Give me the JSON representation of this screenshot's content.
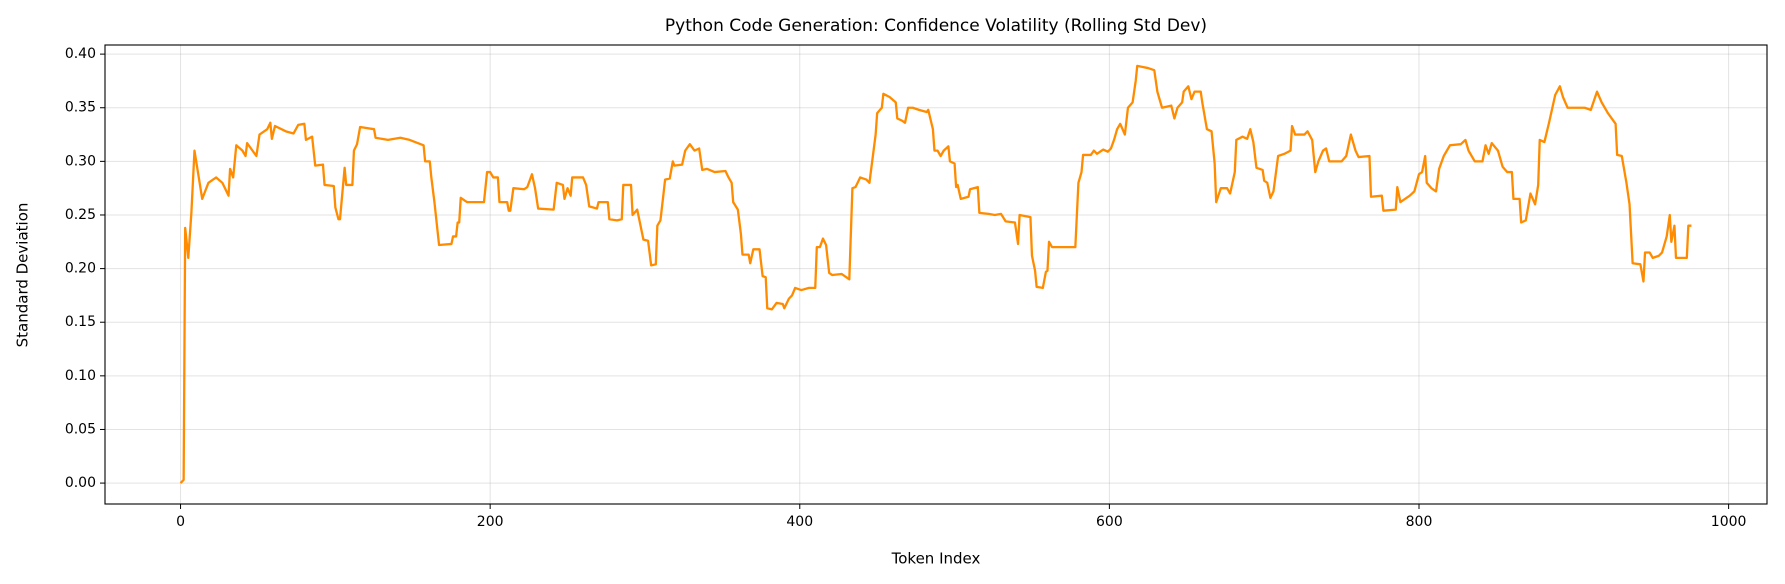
{
  "chart_data": {
    "type": "line",
    "title": "Python Code Generation: Confidence Volatility (Rolling Std Dev)",
    "x_label": "Token Index",
    "y_label": "Standard Deviation",
    "xlim": [
      -48.8,
      1024.8
    ],
    "ylim": [
      -0.0195,
      0.4085
    ],
    "xticks": [
      0,
      200,
      400,
      600,
      800,
      1000
    ],
    "yticks": [
      {
        "value": 0,
        "label": "0.00"
      },
      {
        "value": 0.05,
        "label": "0.05"
      },
      {
        "value": 0.1,
        "label": "0.10"
      },
      {
        "value": 0.15,
        "label": "0.15"
      },
      {
        "value": 0.2,
        "label": "0.20"
      },
      {
        "value": 0.25,
        "label": "0.25"
      },
      {
        "value": 0.3,
        "label": "0.30"
      },
      {
        "value": 0.35,
        "label": "0.35"
      },
      {
        "value": 0.4,
        "label": "0.40"
      }
    ],
    "grid": true,
    "x": [
      0,
      2,
      3,
      5,
      7,
      9,
      14,
      18,
      23,
      27,
      31,
      32,
      34,
      36,
      40,
      42,
      43,
      49,
      51,
      56,
      58,
      59,
      61,
      68,
      73,
      76,
      80,
      81,
      85,
      87,
      92,
      93,
      99,
      100,
      102,
      103,
      106,
      107,
      111,
      112,
      114,
      116,
      125,
      126,
      134,
      142,
      148,
      157,
      158,
      161,
      162,
      164,
      167,
      175,
      176,
      178,
      179,
      180,
      181,
      185,
      196,
      198,
      200,
      202,
      205,
      206,
      211,
      212,
      213,
      215,
      222,
      224,
      227,
      229,
      231,
      241,
      243,
      247,
      248,
      250,
      252,
      253,
      260,
      262,
      264,
      269,
      270,
      276,
      277,
      282,
      285,
      286,
      291,
      292,
      295,
      299,
      302,
      304,
      307,
      308,
      310,
      312,
      313,
      316,
      318,
      319,
      324,
      326,
      329,
      332,
      335,
      337,
      340,
      345,
      352,
      354,
      356,
      357,
      360,
      362,
      363,
      367,
      368,
      370,
      374,
      376,
      378,
      379,
      382,
      385,
      389,
      390,
      393,
      395,
      397,
      401,
      406,
      410,
      411,
      413,
      415,
      417,
      419,
      421,
      427,
      429,
      432,
      434,
      436,
      439,
      443,
      445,
      449,
      450,
      453,
      454,
      458,
      462,
      463,
      466,
      468,
      470,
      473,
      477,
      482,
      483,
      486,
      487,
      489,
      491,
      493,
      496,
      497,
      500,
      501,
      502,
      504,
      509,
      510,
      515,
      516,
      522,
      526,
      530,
      533,
      539,
      541,
      542,
      549,
      550,
      552,
      553,
      557,
      559,
      560,
      561,
      563,
      578,
      580,
      582,
      583,
      588,
      590,
      592,
      596,
      599,
      601,
      603,
      605,
      607,
      610,
      612,
      615,
      617,
      618,
      625,
      629,
      631,
      633,
      634,
      640,
      642,
      644,
      647,
      648,
      651,
      653,
      655,
      659,
      660,
      663,
      666,
      668,
      669,
      672,
      676,
      678,
      681,
      682,
      686,
      689,
      691,
      693,
      695,
      699,
      700,
      702,
      704,
      706,
      709,
      713,
      717,
      718,
      720,
      726,
      728,
      731,
      733,
      735,
      738,
      740,
      742,
      750,
      753,
      756,
      759,
      761,
      768,
      769,
      776,
      777,
      785,
      786,
      788,
      794,
      797,
      800,
      802,
      804,
      805,
      808,
      811,
      813,
      816,
      820,
      827,
      830,
      832,
      836,
      841,
      843,
      845,
      847,
      851,
      854,
      857,
      860,
      861,
      865,
      866,
      869,
      872,
      875,
      877,
      878,
      881,
      884,
      888,
      891,
      893,
      896,
      907,
      911,
      915,
      918,
      922,
      927,
      928,
      931,
      934,
      936,
      938,
      943,
      945,
      946,
      949,
      951,
      955,
      957,
      960,
      962,
      963,
      965,
      966,
      973,
      974,
      976
    ],
    "series": [
      {
        "name": "Rolling Std Dev",
        "color": "#ff8c00",
        "values": [
          0,
          0.003,
          0.238,
          0.21,
          0.252,
          0.31,
          0.265,
          0.28,
          0.285,
          0.28,
          0.268,
          0.293,
          0.285,
          0.315,
          0.31,
          0.305,
          0.317,
          0.305,
          0.325,
          0.33,
          0.336,
          0.321,
          0.333,
          0.328,
          0.326,
          0.334,
          0.335,
          0.32,
          0.323,
          0.296,
          0.297,
          0.278,
          0.277,
          0.257,
          0.246,
          0.246,
          0.294,
          0.278,
          0.278,
          0.31,
          0.316,
          0.332,
          0.33,
          0.322,
          0.32,
          0.322,
          0.32,
          0.315,
          0.3,
          0.3,
          0.285,
          0.262,
          0.222,
          0.223,
          0.23,
          0.23,
          0.243,
          0.243,
          0.266,
          0.262,
          0.262,
          0.29,
          0.29,
          0.285,
          0.285,
          0.262,
          0.262,
          0.254,
          0.254,
          0.275,
          0.274,
          0.276,
          0.288,
          0.275,
          0.256,
          0.255,
          0.28,
          0.278,
          0.265,
          0.275,
          0.268,
          0.285,
          0.285,
          0.278,
          0.258,
          0.256,
          0.262,
          0.262,
          0.246,
          0.245,
          0.246,
          0.278,
          0.278,
          0.25,
          0.255,
          0.227,
          0.226,
          0.203,
          0.204,
          0.24,
          0.245,
          0.27,
          0.283,
          0.284,
          0.3,
          0.296,
          0.297,
          0.31,
          0.316,
          0.31,
          0.312,
          0.292,
          0.293,
          0.29,
          0.291,
          0.285,
          0.28,
          0.262,
          0.255,
          0.232,
          0.213,
          0.213,
          0.205,
          0.218,
          0.218,
          0.193,
          0.192,
          0.163,
          0.162,
          0.168,
          0.167,
          0.163,
          0.172,
          0.175,
          0.182,
          0.18,
          0.182,
          0.182,
          0.22,
          0.22,
          0.228,
          0.222,
          0.196,
          0.194,
          0.195,
          0.193,
          0.19,
          0.275,
          0.276,
          0.285,
          0.283,
          0.28,
          0.325,
          0.345,
          0.35,
          0.363,
          0.36,
          0.355,
          0.34,
          0.338,
          0.336,
          0.35,
          0.35,
          0.348,
          0.346,
          0.348,
          0.33,
          0.31,
          0.31,
          0.305,
          0.31,
          0.314,
          0.3,
          0.298,
          0.276,
          0.278,
          0.265,
          0.267,
          0.274,
          0.276,
          0.252,
          0.251,
          0.25,
          0.251,
          0.244,
          0.243,
          0.223,
          0.25,
          0.248,
          0.212,
          0.198,
          0.183,
          0.182,
          0.197,
          0.198,
          0.225,
          0.22,
          0.22,
          0.28,
          0.29,
          0.306,
          0.306,
          0.31,
          0.307,
          0.311,
          0.309,
          0.312,
          0.32,
          0.33,
          0.335,
          0.325,
          0.35,
          0.355,
          0.375,
          0.389,
          0.387,
          0.385,
          0.365,
          0.355,
          0.35,
          0.352,
          0.34,
          0.35,
          0.355,
          0.365,
          0.37,
          0.358,
          0.365,
          0.365,
          0.355,
          0.33,
          0.328,
          0.298,
          0.262,
          0.275,
          0.275,
          0.27,
          0.29,
          0.32,
          0.323,
          0.321,
          0.33,
          0.318,
          0.294,
          0.292,
          0.282,
          0.28,
          0.266,
          0.272,
          0.305,
          0.307,
          0.31,
          0.333,
          0.325,
          0.325,
          0.328,
          0.32,
          0.29,
          0.3,
          0.31,
          0.312,
          0.3,
          0.3,
          0.305,
          0.325,
          0.31,
          0.304,
          0.305,
          0.267,
          0.268,
          0.254,
          0.255,
          0.276,
          0.262,
          0.268,
          0.272,
          0.288,
          0.29,
          0.305,
          0.28,
          0.275,
          0.272,
          0.293,
          0.305,
          0.315,
          0.316,
          0.32,
          0.31,
          0.3,
          0.3,
          0.315,
          0.307,
          0.317,
          0.31,
          0.295,
          0.29,
          0.29,
          0.265,
          0.265,
          0.243,
          0.245,
          0.27,
          0.26,
          0.278,
          0.32,
          0.318,
          0.336,
          0.362,
          0.37,
          0.36,
          0.35,
          0.35,
          0.348,
          0.365,
          0.355,
          0.345,
          0.335,
          0.306,
          0.305,
          0.28,
          0.26,
          0.205,
          0.204,
          0.188,
          0.215,
          0.215,
          0.21,
          0.212,
          0.215,
          0.23,
          0.25,
          0.225,
          0.24,
          0.21,
          0.21,
          0.24,
          0.24
        ]
      }
    ]
  }
}
